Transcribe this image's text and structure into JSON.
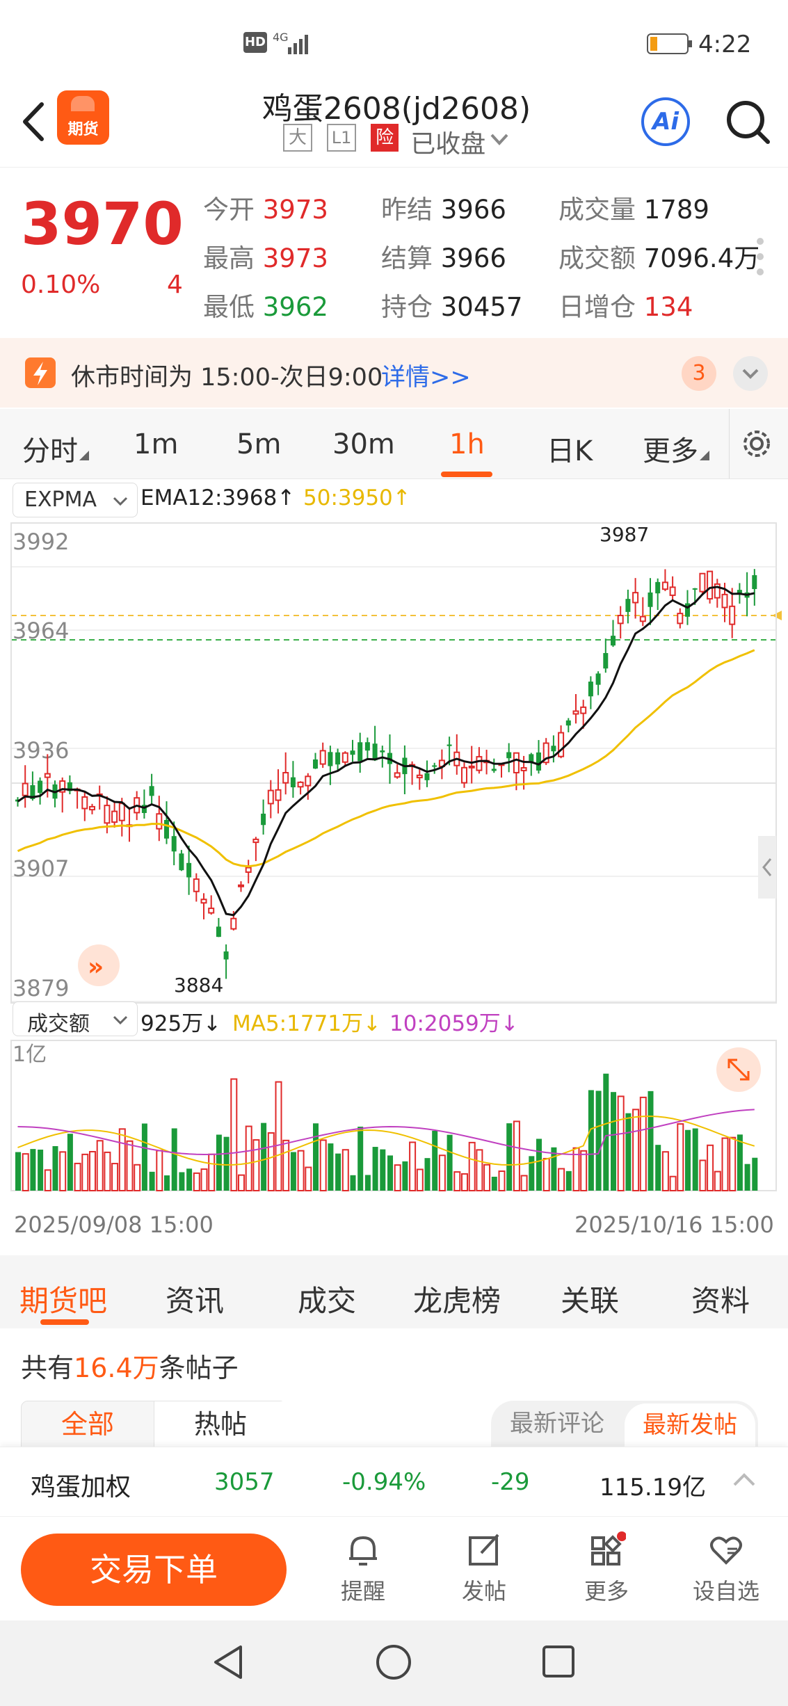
{
  "status": {
    "network": "HD 4G",
    "time": "4:22"
  },
  "nav": {
    "app_badge": "期货",
    "title": "鸡蛋2608(jd2608)",
    "tags": [
      "大",
      "L1",
      "险"
    ],
    "market_state": "已收盘"
  },
  "quote": {
    "price": "3970",
    "change_pct": "0.10%",
    "change": "4",
    "fields": [
      {
        "label": "今开",
        "value": "3973"
      },
      {
        "label": "昨结",
        "value": "3966"
      },
      {
        "label": "成交量",
        "value": "1789"
      },
      {
        "label": "最高",
        "value": "3973"
      },
      {
        "label": "结算",
        "value": "3966"
      },
      {
        "label": "成交额",
        "value": "7096.4万"
      },
      {
        "label": "最低",
        "value": "3962"
      },
      {
        "label": "持仓",
        "value": "30457"
      },
      {
        "label": "日增仓",
        "value": "134"
      }
    ]
  },
  "notice": {
    "text": "休市时间为 15:00-次日9:00",
    "link": "详情>>",
    "count": "3"
  },
  "ktabs": [
    "分时",
    "1m",
    "5m",
    "30m",
    "1h",
    "日K",
    "更多"
  ],
  "ktabs_active": "1h",
  "indicator": {
    "name": "EXPMA",
    "ema12": "EMA12:3968↑",
    "ema50": "50:3950↑"
  },
  "chart_data": {
    "type": "candlestick",
    "y_ticks": [
      "3992",
      "3964",
      "3936",
      "3907",
      "3879"
    ],
    "ylim": [
      3879,
      3992
    ],
    "high_label": "3987",
    "low_label": "3884",
    "x_start": "2025/09/08 15:00",
    "x_end": "2025/10/16 15:00",
    "volume_panel": {
      "indicator": "成交额",
      "current": "925万↓",
      "ma5": "MA5:1771万↓",
      "ma10": "10:2059万↓",
      "y_tick": "1亿"
    }
  },
  "subtabs": [
    "期货吧",
    "资讯",
    "成交",
    "龙虎榜",
    "关联",
    "资料"
  ],
  "subtabs_active": "期货吧",
  "posts": {
    "count_prefix": "共有",
    "count": "16.4万",
    "count_suffix": "条帖子",
    "filters": [
      "全部",
      "热帖"
    ],
    "sorts": [
      "最新评论",
      "最新发帖"
    ]
  },
  "ticker": {
    "name": "鸡蛋加权",
    "price": "3057",
    "pct": "-0.94%",
    "chg": "-29",
    "amount": "115.19亿"
  },
  "actions": {
    "trade": "交易下单",
    "items": [
      "提醒",
      "发帖",
      "更多",
      "设自选"
    ]
  },
  "colors": {
    "up": "#e02a2a",
    "down": "#1a9a3a",
    "accent": "#ff5a14",
    "ema50": "#f0c000"
  }
}
